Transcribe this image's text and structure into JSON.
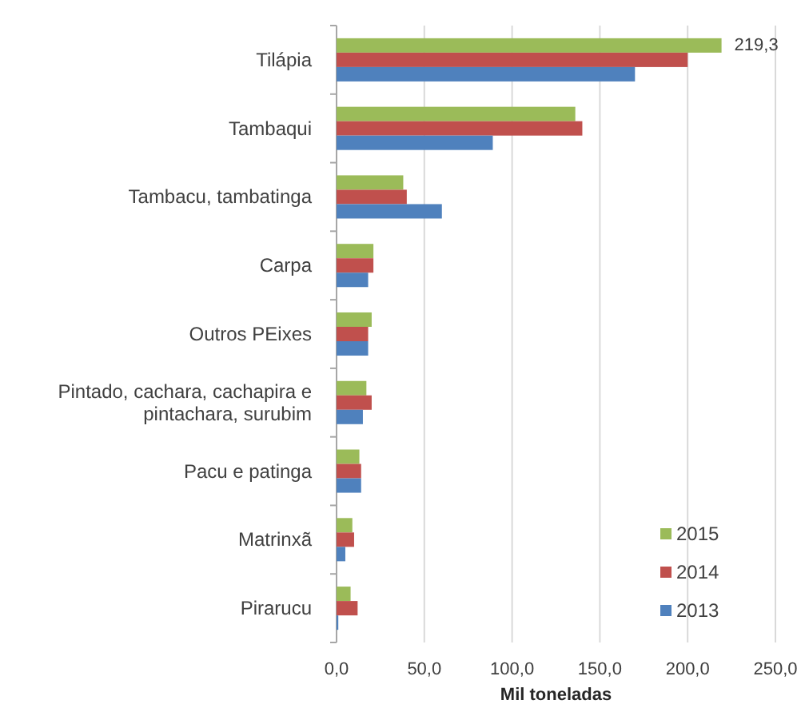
{
  "chart_data": {
    "type": "bar",
    "orientation": "horizontal",
    "categories": [
      "Tilápia",
      "Tambaqui",
      "Tambacu, tambatinga",
      "Carpa",
      "Outros PEixes",
      "Pintado, cachara, cachapira e pintachara, surubim",
      "Pacu e patinga",
      "Matrinxã",
      "Pirarucu"
    ],
    "series": [
      {
        "name": "2015",
        "color": "#9bbb59",
        "values": [
          219.3,
          136,
          38,
          21,
          20,
          17,
          13,
          9,
          8
        ],
        "value_labels": [
          "219,3",
          null,
          null,
          null,
          null,
          null,
          null,
          null,
          null
        ]
      },
      {
        "name": "2014",
        "color": "#c0504d",
        "values": [
          200,
          140,
          40,
          21,
          18,
          20,
          14,
          10,
          12
        ]
      },
      {
        "name": "2013",
        "color": "#4f81bd",
        "values": [
          170,
          89,
          60,
          18,
          18,
          15,
          14,
          5,
          1
        ]
      }
    ],
    "xlim": [
      0,
      250
    ],
    "xticks": [
      {
        "value": 0,
        "label": "0,0"
      },
      {
        "value": 50,
        "label": "50,0"
      },
      {
        "value": 100,
        "label": "100,0"
      },
      {
        "value": 150,
        "label": "150,0"
      },
      {
        "value": 200,
        "label": "200,0"
      },
      {
        "value": 250,
        "label": "250,0"
      }
    ],
    "xlabel": "Mil toneladas",
    "grid": "x",
    "legend": "bottom right"
  }
}
